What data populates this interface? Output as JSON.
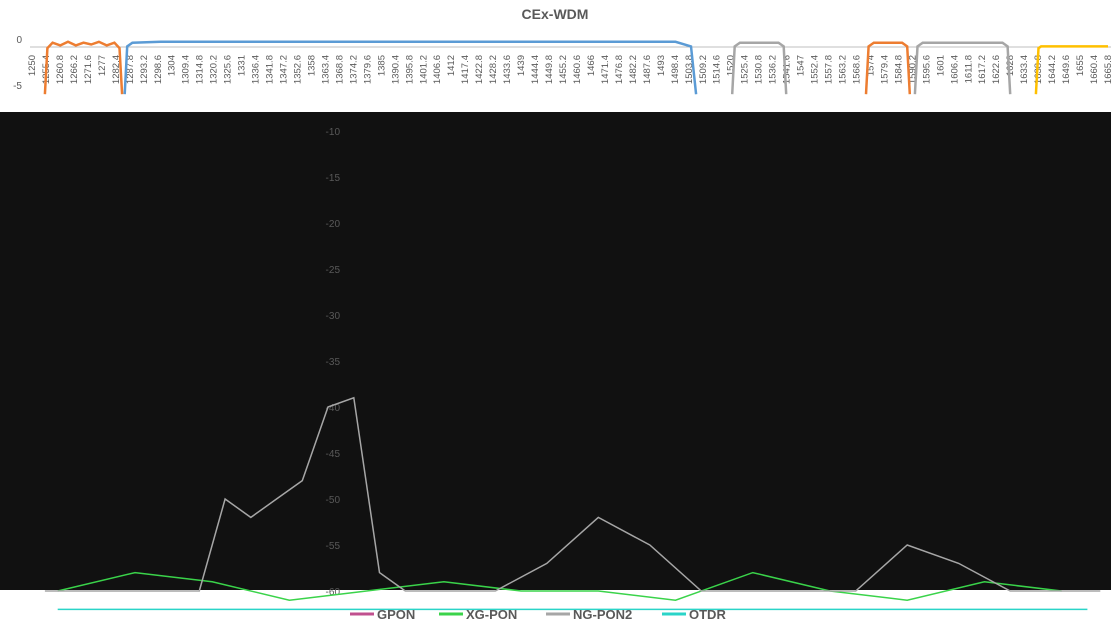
{
  "chart_data": {
    "type": "line",
    "title": "CEx-WDM",
    "xlabel": "",
    "ylabel": "",
    "x_tick_labels": [
      "1250",
      "1255.4",
      "1260.8",
      "1266.2",
      "1271.6",
      "1277",
      "1282.4",
      "1287.8",
      "1293.2",
      "1298.6",
      "1304",
      "1309.4",
      "1314.8",
      "1320.2",
      "1325.6",
      "1331",
      "1336.4",
      "1341.8",
      "1347.2",
      "1352.6",
      "1358",
      "1363.4",
      "1368.8",
      "1374.2",
      "1379.6",
      "1385",
      "1390.4",
      "1395.8",
      "1401.2",
      "1406.6",
      "1412",
      "1417.4",
      "1422.8",
      "1428.2",
      "1433.6",
      "1439",
      "1444.4",
      "1449.8",
      "1455.2",
      "1460.6",
      "1466",
      "1471.4",
      "1476.8",
      "1482.2",
      "1487.6",
      "1493",
      "1498.4",
      "1503.8",
      "1509.2",
      "1514.6",
      "1520",
      "1525.4",
      "1530.8",
      "1536.2",
      "1541.6",
      "1547",
      "1552.4",
      "1557.8",
      "1563.2",
      "1568.6",
      "1574",
      "1579.4",
      "1584.8",
      "1590.2",
      "1595.6",
      "1601",
      "1606.4",
      "1611.8",
      "1617.2",
      "1622.6",
      "1628",
      "1633.4",
      "1638.8",
      "1644.2",
      "1649.6",
      "1655",
      "1660.4",
      "1665.8"
    ],
    "y_tick_labels": [
      "0",
      "-5",
      "-10",
      "-15",
      "-20",
      "-25",
      "-30",
      "-35",
      "-40",
      "-45",
      "-50",
      "-55",
      "-60",
      "-65"
    ],
    "xlim": [
      1250,
      1668
    ],
    "ylim": [
      -70,
      2
    ],
    "grid": false,
    "legend_position": "bottom",
    "series": [
      {
        "name": "GPON",
        "color": "#c0508f",
        "x": [
          1260,
          1290,
          1320,
          1350,
          1380,
          1410,
          1440,
          1470,
          1500,
          1530,
          1560,
          1590,
          1620,
          1650
        ],
        "y": [
          -66,
          -66,
          -66,
          -66,
          -66,
          -66,
          -66,
          -66,
          -66,
          -66,
          -66,
          -66,
          -66,
          -66
        ]
      },
      {
        "name": "XG-PON",
        "color": "#3ad34a",
        "x": [
          1260,
          1290,
          1320,
          1350,
          1380,
          1410,
          1440,
          1470,
          1500,
          1530,
          1560,
          1590,
          1620,
          1650
        ],
        "y": [
          -60,
          -58,
          -59,
          -61,
          -60,
          -59,
          -60,
          -60,
          -61,
          -58,
          -60,
          -61,
          -59,
          -60
        ]
      },
      {
        "name": "NG-PON2",
        "color": "#a6a6a6",
        "x": [
          1255,
          1270,
          1285,
          1300,
          1315,
          1325,
          1335,
          1345,
          1355,
          1365,
          1375,
          1385,
          1395,
          1410,
          1430,
          1450,
          1470,
          1490,
          1510,
          1530,
          1550,
          1570,
          1590,
          1610,
          1630,
          1650,
          1665
        ],
        "y": [
          -60,
          -60,
          -60,
          -60,
          -60,
          -50,
          -52,
          -50,
          -48,
          -40,
          -39,
          -58,
          -60,
          -60,
          -60,
          -57,
          -52,
          -55,
          -60,
          -60,
          -60,
          -60,
          -55,
          -57,
          -60,
          -60,
          -60
        ]
      },
      {
        "name": "OTDR",
        "color": "#2ad4c8",
        "x": [
          1260,
          1300,
          1340,
          1380,
          1420,
          1460,
          1500,
          1540,
          1580,
          1620,
          1660
        ],
        "y": [
          -62,
          -62,
          -62,
          -62,
          -62,
          -62,
          -62,
          -62,
          -62,
          -62,
          -62
        ]
      }
    ],
    "filter_bands": [
      {
        "color": "#ed7d31",
        "x": [
          1255,
          1256,
          1258,
          1261,
          1264,
          1267,
          1270,
          1273,
          1276,
          1279,
          1282,
          1284,
          1285
        ],
        "y": [
          -6,
          -1,
          -0.4,
          -0.7,
          -0.3,
          -0.7,
          -0.4,
          -0.6,
          -0.3,
          -0.7,
          -0.4,
          -1,
          -6
        ]
      },
      {
        "color": "#5b9bd5",
        "x": [
          1286,
          1287,
          1289,
          1300,
          1320,
          1340,
          1360,
          1380,
          1400,
          1420,
          1440,
          1460,
          1480,
          1500,
          1506,
          1508
        ],
        "y": [
          -6,
          -0.8,
          -0.4,
          -0.3,
          -0.3,
          -0.3,
          -0.3,
          -0.3,
          -0.3,
          -0.3,
          -0.3,
          -0.3,
          -0.3,
          -0.3,
          -0.8,
          -6
        ]
      },
      {
        "color": "#a6a6a6",
        "x": [
          1522,
          1523,
          1525,
          1540,
          1542,
          1543
        ],
        "y": [
          -6,
          -0.8,
          -0.4,
          -0.4,
          -0.8,
          -6
        ]
      },
      {
        "color": "#ed7d31",
        "x": [
          1574,
          1575,
          1577,
          1588,
          1590,
          1591
        ],
        "y": [
          -6,
          -0.8,
          -0.4,
          -0.4,
          -0.8,
          -6
        ]
      },
      {
        "color": "#a6a6a6",
        "x": [
          1593,
          1594,
          1596,
          1627,
          1629,
          1630
        ],
        "y": [
          -6,
          -0.8,
          -0.4,
          -0.4,
          -0.8,
          -6
        ]
      },
      {
        "color": "#ffc000",
        "x": [
          1640,
          1641,
          1642,
          1650,
          1668
        ],
        "y": [
          -6,
          -1,
          -0.8,
          -0.8,
          -0.8
        ]
      }
    ]
  }
}
